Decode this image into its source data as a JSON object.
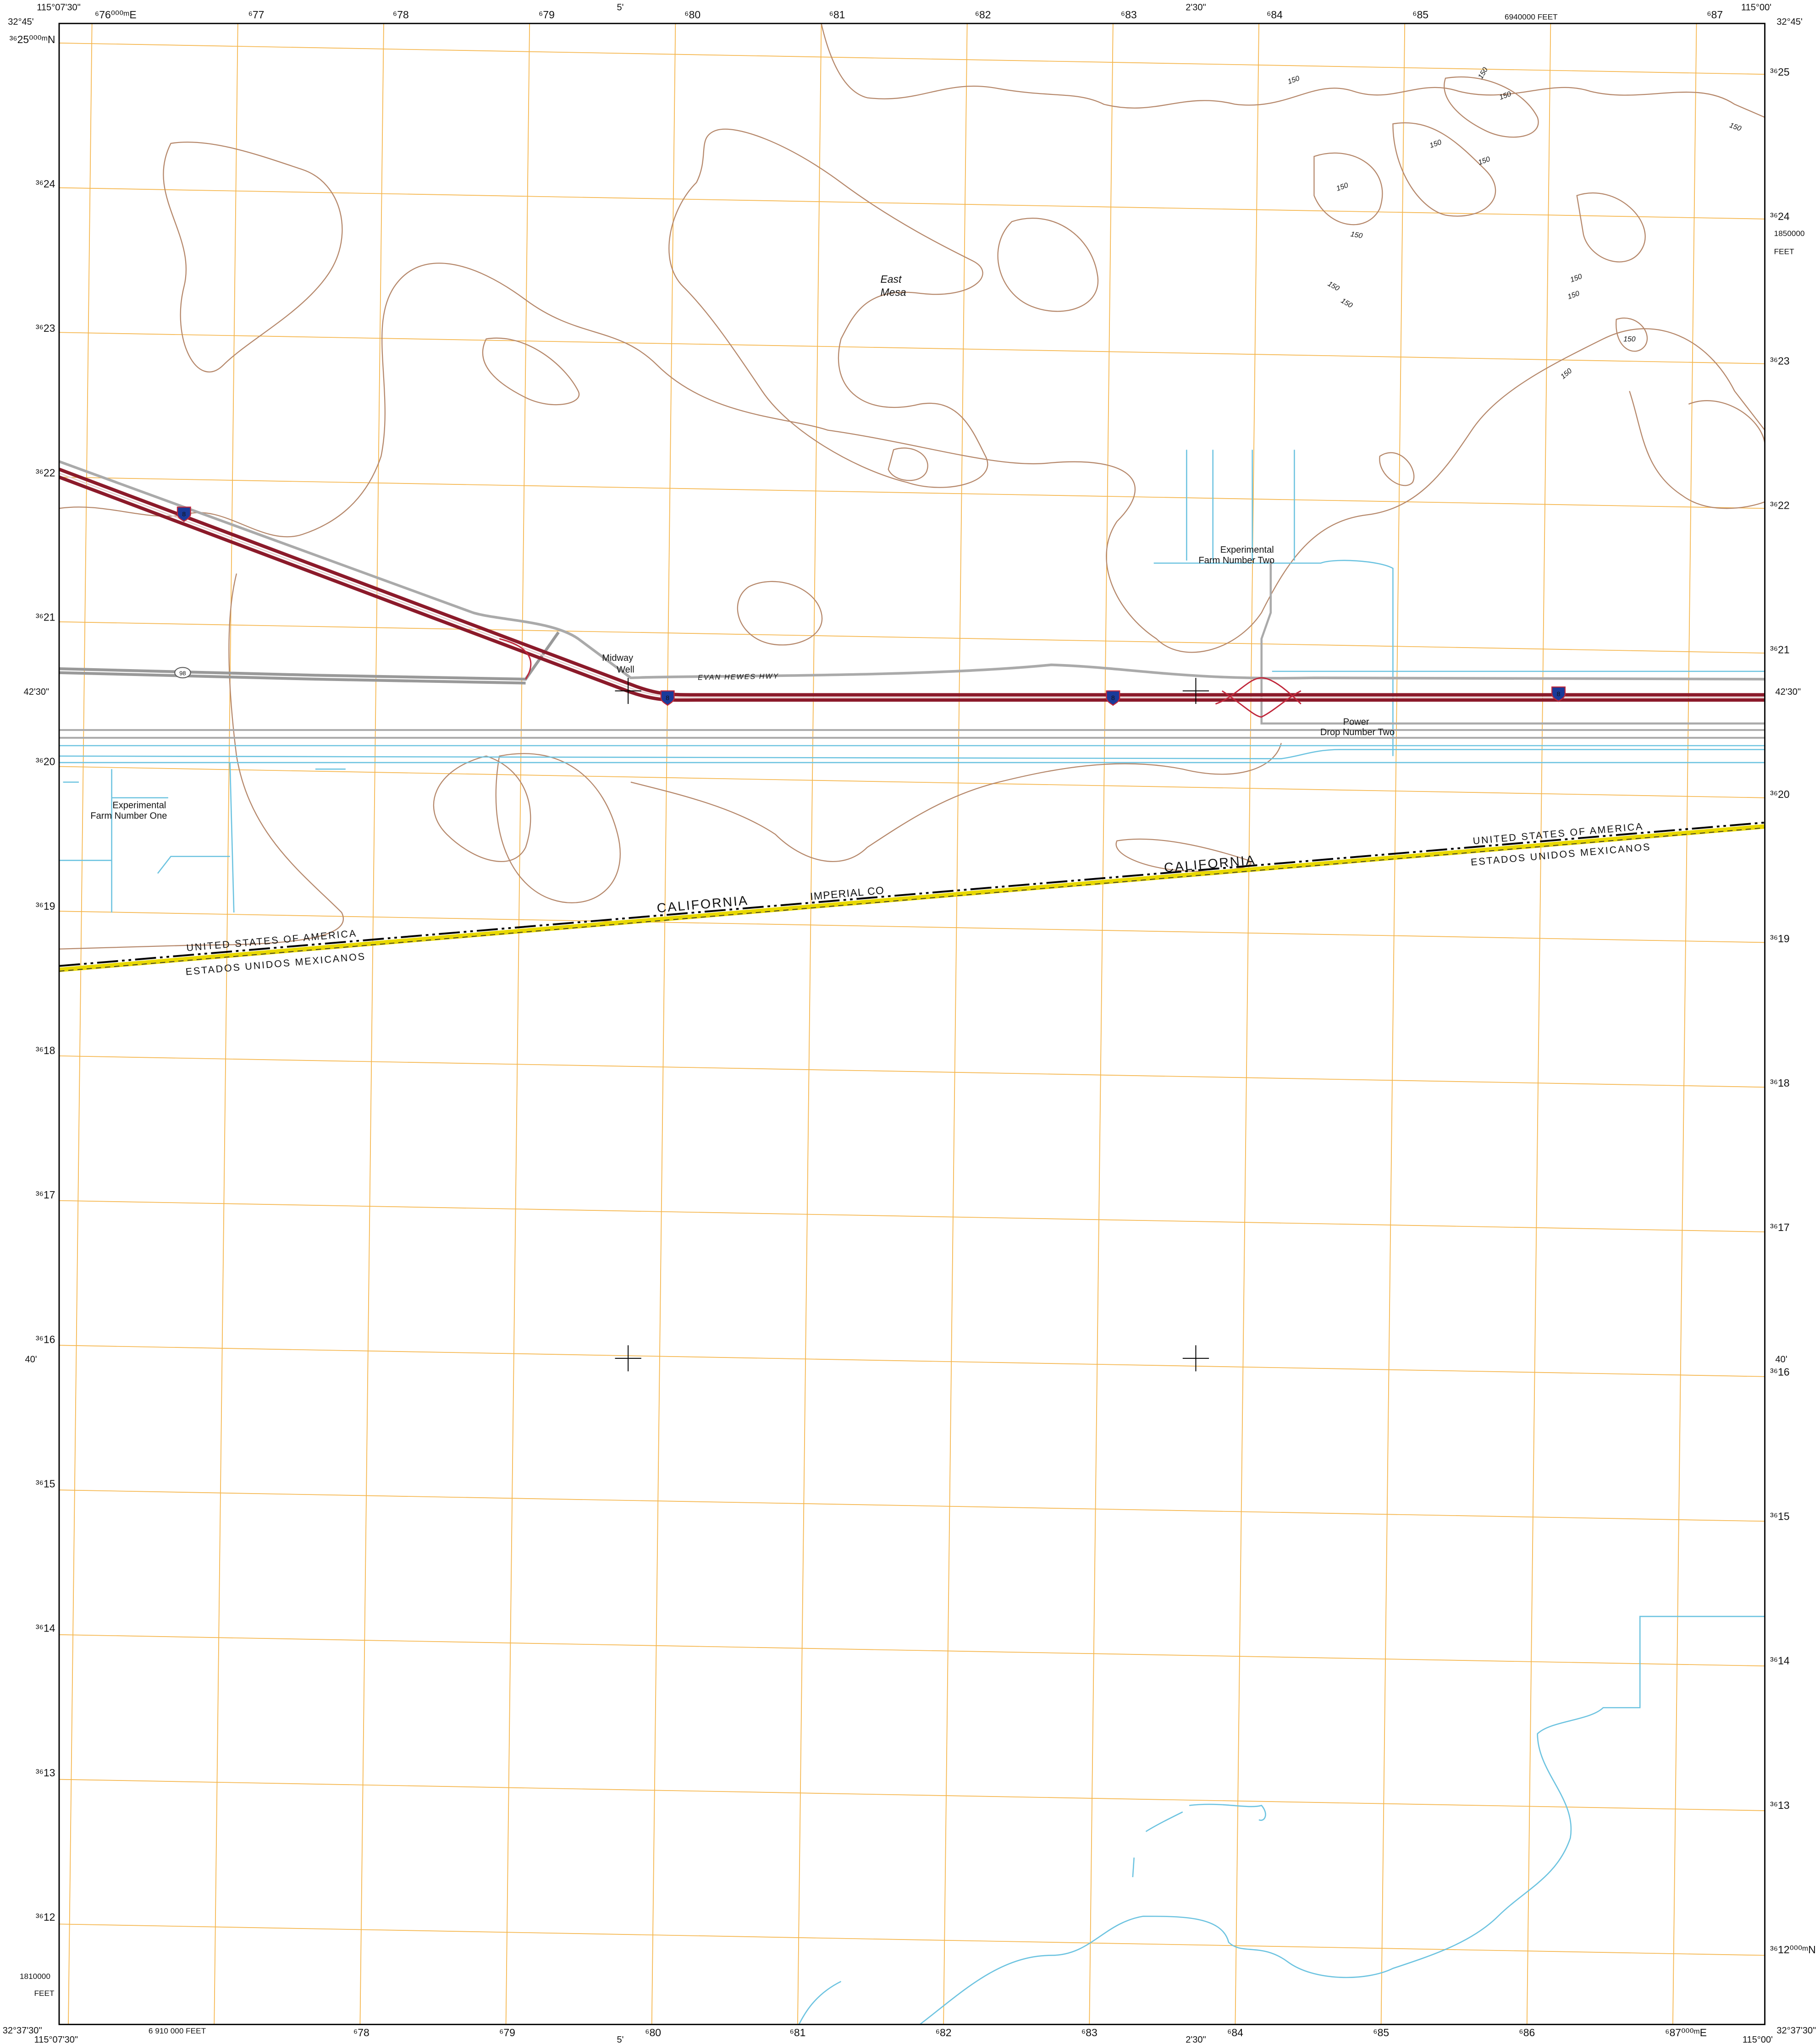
{
  "collar": {
    "nw_lon": "115°07'30\"",
    "nw_lat": "32°45'",
    "ne_lon": "115°00'",
    "ne_lat": "32°45'",
    "sw_lat": "32°37'30\"",
    "sw_lon": "115°07'30\"",
    "se_lon": "115°00'",
    "se_lat": "32°37'30\"",
    "top_5min": "5'",
    "top_2min30": "2'30\"",
    "bottom_5min": "5'",
    "bottom_2min30": "2'30\"",
    "left_42_30": "42'30\"",
    "right_42_30": "42'30\"",
    "left_40": "40'",
    "right_40": "40'",
    "state_plane_top": "6940000 FEET",
    "state_plane_right": "1850000",
    "state_plane_right_unit": "FEET",
    "state_plane_left": "1810000",
    "state_plane_left_unit": "FEET",
    "state_plane_bottom": "6 910 000 FEET"
  },
  "utm": {
    "top": [
      "⁶76⁰⁰⁰ᵐE",
      "⁶77",
      "⁶78",
      "⁶79",
      "⁶80",
      "⁶81",
      "⁶82",
      "⁶83",
      "⁶84",
      "⁶85",
      "⁶87"
    ],
    "bottom": [
      "⁶78",
      "⁶79",
      "⁶80",
      "⁶81",
      "⁶82",
      "⁶83",
      "⁶84",
      "⁶85",
      "⁶86",
      "⁶87⁰⁰⁰ᵐE"
    ],
    "left": [
      "³⁶25⁰⁰⁰ᵐN",
      "³⁶24",
      "³⁶23",
      "³⁶22",
      "³⁶21",
      "³⁶20",
      "³⁶19",
      "³⁶18",
      "³⁶17",
      "³⁶16",
      "³⁶15",
      "³⁶14",
      "³⁶13",
      "³⁶12"
    ],
    "right": [
      "³⁶25",
      "³⁶24",
      "³⁶23",
      "³⁶22",
      "³⁶21",
      "³⁶20",
      "³⁶19",
      "³⁶18",
      "³⁶17",
      "³⁶16",
      "³⁶15",
      "³⁶14",
      "³⁶13",
      "³⁶12⁰⁰⁰ᵐN"
    ]
  },
  "features": {
    "east_mesa": [
      "East",
      "Mesa"
    ],
    "farm_two": [
      "Experimental",
      "Farm Number Two"
    ],
    "midway_well": [
      "Midway",
      "Well"
    ],
    "evan_hewes_hwy": "EVAN HEWES HWY",
    "power_drop": [
      "Power",
      "Drop Number Two"
    ],
    "farm_one": [
      "Experimental",
      "Farm Number One"
    ],
    "california_west": "CALIFORNIA",
    "imperial_co": "IMPERIAL CO",
    "california_east": "CALIFORNIA",
    "usa_west": "UNITED STATES OF AMERICA",
    "mexico_west": "ESTADOS UNIDOS MEXICANOS",
    "usa_east": "UNITED STATES OF AMERICA",
    "mexico_east": "ESTADOS UNIDOS MEXICANOS",
    "shields": [
      "8",
      "8",
      "8",
      "8",
      "98"
    ]
  },
  "contour_labels": [
    "150",
    "150",
    "150",
    "150",
    "150",
    "150",
    "150",
    "150",
    "150",
    "150",
    "150",
    "150",
    "150",
    "150"
  ]
}
